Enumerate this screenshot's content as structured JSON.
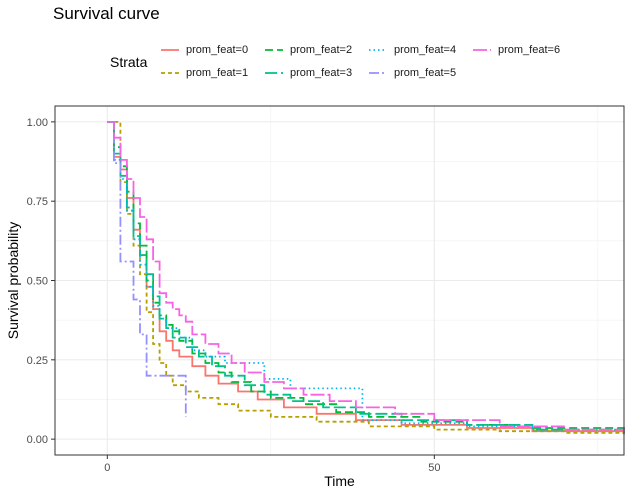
{
  "chart_data": {
    "type": "line",
    "step": true,
    "title": "Survival curve",
    "xlabel": "Time",
    "ylabel": "Survival probability",
    "xlim": [
      -8,
      79
    ],
    "ylim": [
      -0.05,
      1.05
    ],
    "xticks": [
      0,
      50
    ],
    "yticks": [
      0,
      0.25,
      0.5,
      0.75,
      1.0
    ],
    "ytick_labels": [
      "0.00",
      "0.25",
      "0.50",
      "0.75",
      "1.00"
    ],
    "grid": true,
    "legend": {
      "title": "Strata",
      "position": "top"
    },
    "series": [
      {
        "name": "prom_feat=0",
        "color": "#F8766D",
        "dash": "solid",
        "points": [
          [
            0,
            1.0
          ],
          [
            1,
            0.89
          ],
          [
            2,
            0.85
          ],
          [
            3,
            0.76
          ],
          [
            4,
            0.66
          ],
          [
            5,
            0.58
          ],
          [
            6,
            0.48
          ],
          [
            7,
            0.41
          ],
          [
            8,
            0.34
          ],
          [
            9,
            0.31
          ],
          [
            10,
            0.28
          ],
          [
            11,
            0.26
          ],
          [
            13,
            0.23
          ],
          [
            15,
            0.2
          ],
          [
            17,
            0.175
          ],
          [
            20,
            0.15
          ],
          [
            23,
            0.125
          ],
          [
            27,
            0.1
          ],
          [
            32,
            0.08
          ],
          [
            38,
            0.06
          ],
          [
            45,
            0.045
          ],
          [
            55,
            0.035
          ],
          [
            65,
            0.025
          ],
          [
            79,
            0.02
          ]
        ]
      },
      {
        "name": "prom_feat=1",
        "color": "#B79F00",
        "dash": "4,3",
        "points": [
          [
            0,
            1.0
          ],
          [
            2,
            0.81
          ],
          [
            3,
            0.71
          ],
          [
            4,
            0.61
          ],
          [
            5,
            0.52
          ],
          [
            6,
            0.4
          ],
          [
            7,
            0.3
          ],
          [
            8,
            0.24
          ],
          [
            9,
            0.2
          ],
          [
            10,
            0.17
          ],
          [
            12,
            0.15
          ],
          [
            14,
            0.13
          ],
          [
            17,
            0.11
          ],
          [
            20,
            0.09
          ],
          [
            25,
            0.07
          ],
          [
            32,
            0.055
          ],
          [
            40,
            0.04
          ],
          [
            50,
            0.03
          ],
          [
            60,
            0.025
          ],
          [
            70,
            0.02
          ],
          [
            79,
            0.015
          ]
        ]
      },
      {
        "name": "prom_feat=2",
        "color": "#00BA38",
        "dash": "8,4",
        "points": [
          [
            0,
            1.0
          ],
          [
            1,
            0.92
          ],
          [
            2,
            0.86
          ],
          [
            3,
            0.78
          ],
          [
            4,
            0.68
          ],
          [
            5,
            0.61
          ],
          [
            6,
            0.5
          ],
          [
            7,
            0.43
          ],
          [
            8,
            0.39
          ],
          [
            9,
            0.36
          ],
          [
            10,
            0.34
          ],
          [
            11,
            0.31
          ],
          [
            13,
            0.27
          ],
          [
            15,
            0.24
          ],
          [
            17,
            0.21
          ],
          [
            19,
            0.18
          ],
          [
            22,
            0.15
          ],
          [
            25,
            0.13
          ],
          [
            30,
            0.11
          ],
          [
            35,
            0.085
          ],
          [
            40,
            0.07
          ],
          [
            48,
            0.055
          ],
          [
            55,
            0.045
          ],
          [
            65,
            0.035
          ],
          [
            79,
            0.02
          ]
        ]
      },
      {
        "name": "prom_feat=3",
        "color": "#00C08B",
        "dash": "12,4",
        "points": [
          [
            0,
            1.0
          ],
          [
            1,
            0.9
          ],
          [
            2,
            0.83
          ],
          [
            3,
            0.73
          ],
          [
            4,
            0.64
          ],
          [
            5,
            0.58
          ],
          [
            6,
            0.52
          ],
          [
            7,
            0.45
          ],
          [
            8,
            0.38
          ],
          [
            9,
            0.35
          ],
          [
            10,
            0.32
          ],
          [
            12,
            0.29
          ],
          [
            14,
            0.26
          ],
          [
            16,
            0.23
          ],
          [
            18,
            0.2
          ],
          [
            21,
            0.17
          ],
          [
            24,
            0.14
          ],
          [
            28,
            0.12
          ],
          [
            33,
            0.1
          ],
          [
            38,
            0.08
          ],
          [
            45,
            0.06
          ],
          [
            55,
            0.045
          ],
          [
            65,
            0.03
          ],
          [
            79,
            0.015
          ]
        ]
      },
      {
        "name": "prom_feat=4",
        "color": "#00B4F0",
        "dash": "1.5,3",
        "points": [
          [
            0,
            1.0
          ],
          [
            1,
            0.88
          ],
          [
            2,
            0.82
          ],
          [
            3,
            0.72
          ],
          [
            4,
            0.63
          ],
          [
            5,
            0.55
          ],
          [
            6,
            0.48
          ],
          [
            7,
            0.42
          ],
          [
            8,
            0.38
          ],
          [
            9,
            0.35
          ],
          [
            11,
            0.32
          ],
          [
            13,
            0.28
          ],
          [
            15,
            0.26
          ],
          [
            18,
            0.24
          ],
          [
            24,
            0.19
          ],
          [
            28,
            0.16
          ],
          [
            39,
            0.06
          ],
          [
            45,
            0.05
          ],
          [
            55,
            0.04
          ],
          [
            65,
            0.03
          ],
          [
            79,
            0.02
          ]
        ]
      },
      {
        "name": "prom_feat=5",
        "color": "#9590FF",
        "dash": "10,3,2,3",
        "points": [
          [
            0,
            1.0
          ],
          [
            1,
            0.87
          ],
          [
            2,
            0.56
          ],
          [
            4,
            0.44
          ],
          [
            5,
            0.33
          ],
          [
            6,
            0.2
          ],
          [
            12,
            0.07
          ]
        ]
      },
      {
        "name": "prom_feat=6",
        "color": "#F564E3",
        "dash": "14,3",
        "points": [
          [
            0,
            1.0
          ],
          [
            1,
            0.95
          ],
          [
            2,
            0.88
          ],
          [
            3,
            0.82
          ],
          [
            4,
            0.76
          ],
          [
            5,
            0.7
          ],
          [
            6,
            0.63
          ],
          [
            7,
            0.56
          ],
          [
            8,
            0.46
          ],
          [
            9,
            0.43
          ],
          [
            10,
            0.41
          ],
          [
            11,
            0.39
          ],
          [
            12,
            0.37
          ],
          [
            13,
            0.33
          ],
          [
            15,
            0.3
          ],
          [
            17,
            0.27
          ],
          [
            19,
            0.24
          ],
          [
            21,
            0.21
          ],
          [
            24,
            0.18
          ],
          [
            27,
            0.16
          ],
          [
            30,
            0.14
          ],
          [
            34,
            0.12
          ],
          [
            38,
            0.1
          ],
          [
            44,
            0.08
          ],
          [
            50,
            0.06
          ],
          [
            60,
            0.04
          ],
          [
            70,
            0.03
          ],
          [
            79,
            0.02
          ]
        ]
      }
    ]
  }
}
